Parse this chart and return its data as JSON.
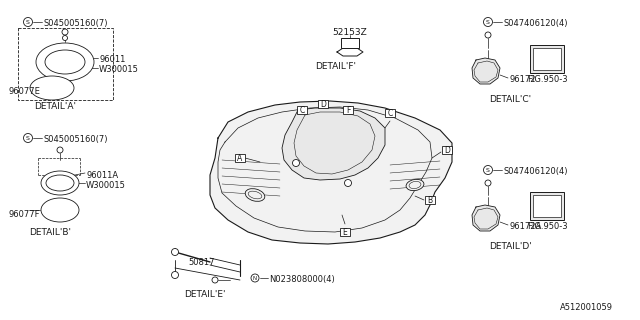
{
  "bg_color": "#ffffff",
  "line_color": "#1a1a1a",
  "diagram_id": "A512001059",
  "parts": {
    "screw_a": "S045005160(7)",
    "screw_c": "S047406120(4)",
    "screw_d": "S047406120(4)",
    "nut": "N023808000(4)",
    "part_96011": "96011",
    "part_w300015_a": "W300015",
    "part_96077e": "96077E",
    "part_96011a": "96011A",
    "part_w300015b": "W300015",
    "part_96077f": "96077F",
    "part_96172": "96172",
    "part_96172a": "96172A",
    "part_50817": "50817",
    "part_52153z": "52153Z",
    "fig_950_3": "FIG.950-3",
    "fig_950_3b": "FIG.950-3"
  },
  "details": {
    "detail_a": "DETAIL'A'",
    "detail_b": "DETAIL'B'",
    "detail_c": "DETAIL'C'",
    "detail_d": "DETAIL'D'",
    "detail_e": "DETAIL'E'",
    "detail_f": "DETAIL'F'"
  }
}
